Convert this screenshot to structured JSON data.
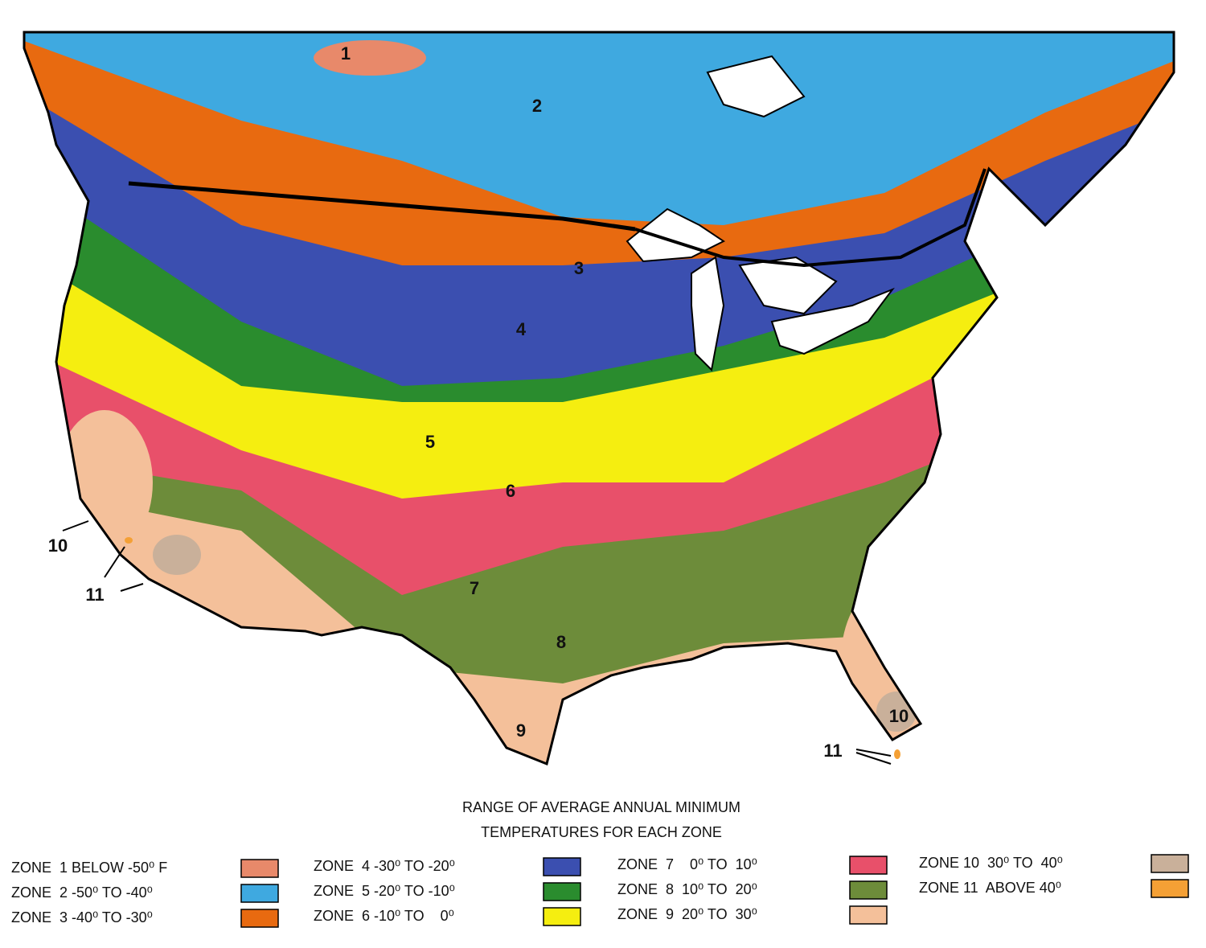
{
  "title": [
    "RANGE OF AVERAGE ANNUAL MINIMUM",
    "TEMPERATURES FOR EACH ZONE"
  ],
  "map_labels": [
    "1",
    "2",
    "3",
    "4",
    "5",
    "6",
    "7",
    "8",
    "9",
    "10",
    "10",
    "11",
    "11"
  ],
  "legend": [
    {
      "label": "ZONE  1 BELOW -50⁰ F",
      "color": "#e8896a"
    },
    {
      "label": "ZONE  2 -50⁰ TO -40⁰",
      "color": "#3fa9e0"
    },
    {
      "label": "ZONE  3 -40⁰ TO -30⁰",
      "color": "#e86a10"
    },
    {
      "label": "ZONE  4 -30⁰ TO -20⁰",
      "color": "#3b4fb0"
    },
    {
      "label": "ZONE  5 -20⁰ TO -10⁰",
      "color": "#2a8c2e"
    },
    {
      "label": "ZONE  6 -10⁰ TO    0⁰",
      "color": "#f5ee10"
    },
    {
      "label": "ZONE  7    0⁰ TO  10⁰",
      "color": "#e8506a"
    },
    {
      "label": "ZONE  8  10⁰ TO  20⁰",
      "color": "#6d8c3a"
    },
    {
      "label": "ZONE  9  20⁰ TO  30⁰",
      "color": "#f4c09a"
    },
    {
      "label": "ZONE 10  30⁰ TO  40⁰",
      "color": "#c9b09a"
    },
    {
      "label": "ZONE 11  ABOVE 40⁰",
      "color": "#f4a035"
    }
  ]
}
